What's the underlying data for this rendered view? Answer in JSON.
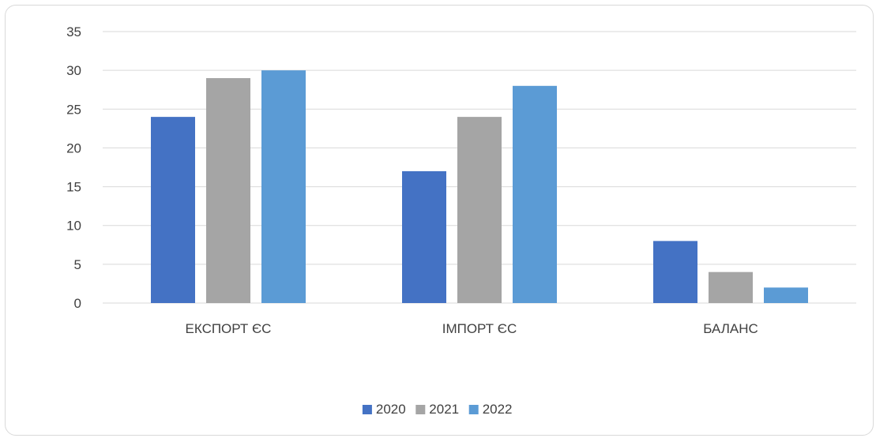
{
  "chart_data": {
    "type": "bar",
    "title": "",
    "xlabel": "",
    "ylabel": "",
    "categories": [
      "ЕКСПОРТ ЄС",
      "ІМПОРТ ЄС",
      "БАЛАНС"
    ],
    "series": [
      {
        "name": "2020",
        "color": "#4472c4",
        "values": [
          24,
          17,
          8
        ]
      },
      {
        "name": "2021",
        "color": "#a5a5a5",
        "values": [
          29,
          24,
          4
        ]
      },
      {
        "name": "2022",
        "color": "#5b9bd5",
        "values": [
          30,
          28,
          2
        ]
      }
    ],
    "ylim": [
      0,
      35
    ],
    "yticks": [
      0,
      5,
      10,
      15,
      20,
      25,
      30,
      35
    ],
    "grid": true,
    "legend_position": "bottom"
  }
}
